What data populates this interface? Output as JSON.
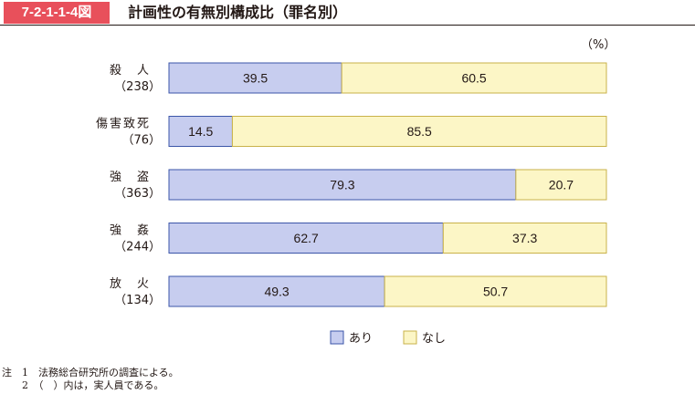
{
  "figure": {
    "number": "7-2-1-1-4図",
    "title": "計画性の有無別構成比（罪名別）",
    "unit": "（%）"
  },
  "colors": {
    "yes_fill": "#c7cdef",
    "yes_stroke": "#3b55a8",
    "no_fill": "#fcf6c6",
    "no_stroke": "#c9b24a",
    "figure_label_bg": "#e8505b"
  },
  "chart_data": {
    "type": "bar",
    "orientation": "horizontal",
    "stacked": true,
    "percent": true,
    "categories": [
      {
        "name": "殺　人",
        "count": "（238）"
      },
      {
        "name": "傷害致死",
        "count": "（76）"
      },
      {
        "name": "強　盗",
        "count": "（363）"
      },
      {
        "name": "強　姦",
        "count": "（244）"
      },
      {
        "name": "放　火",
        "count": "（134）"
      }
    ],
    "series": [
      {
        "name": "あり",
        "values": [
          39.5,
          14.5,
          79.3,
          62.7,
          49.3
        ]
      },
      {
        "name": "なし",
        "values": [
          60.5,
          85.5,
          20.7,
          37.3,
          50.7
        ]
      }
    ],
    "xlim": [
      0,
      100
    ],
    "grid": false,
    "legend_position": "bottom"
  },
  "notes": [
    "注　1　法務総合研究所の調査による。",
    "　　2　（　）内は，実人員である。"
  ]
}
